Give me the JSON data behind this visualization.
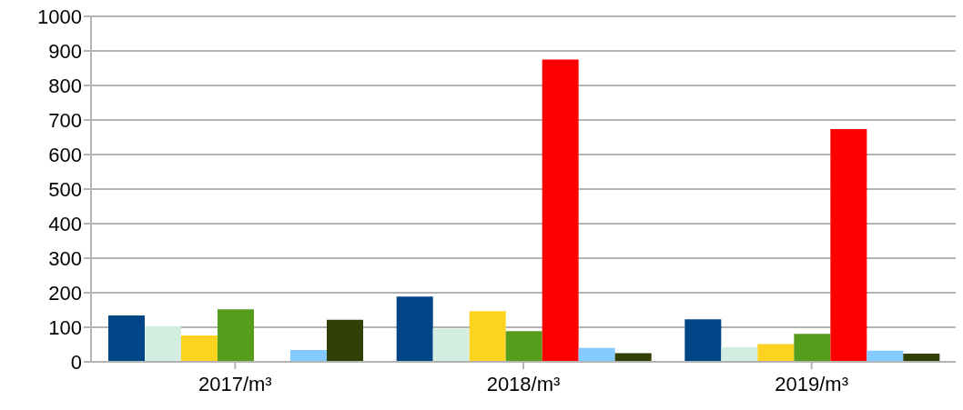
{
  "chart_data": {
    "type": "bar",
    "categories": [
      "2017/m³",
      "2018/m³",
      "2019/m³"
    ],
    "series": [
      {
        "color": "#004586",
        "values": [
          134,
          189,
          123
        ]
      },
      {
        "color": "#d3eee0",
        "values": [
          103,
          96,
          43
        ]
      },
      {
        "color": "#fcd31e",
        "values": [
          76,
          147,
          51
        ]
      },
      {
        "color": "#579d1c",
        "values": [
          152,
          89,
          81
        ]
      },
      {
        "color": "#ff0000",
        "values": [
          null,
          875,
          674
        ]
      },
      {
        "color": "#83caff",
        "values": [
          34,
          40,
          32
        ]
      },
      {
        "color": "#314004",
        "values": [
          122,
          25,
          24
        ]
      }
    ],
    "ylim": [
      0,
      1000
    ],
    "yticks": [
      0,
      100,
      200,
      300,
      400,
      500,
      600,
      700,
      800,
      900,
      1000
    ],
    "grid": "y"
  }
}
